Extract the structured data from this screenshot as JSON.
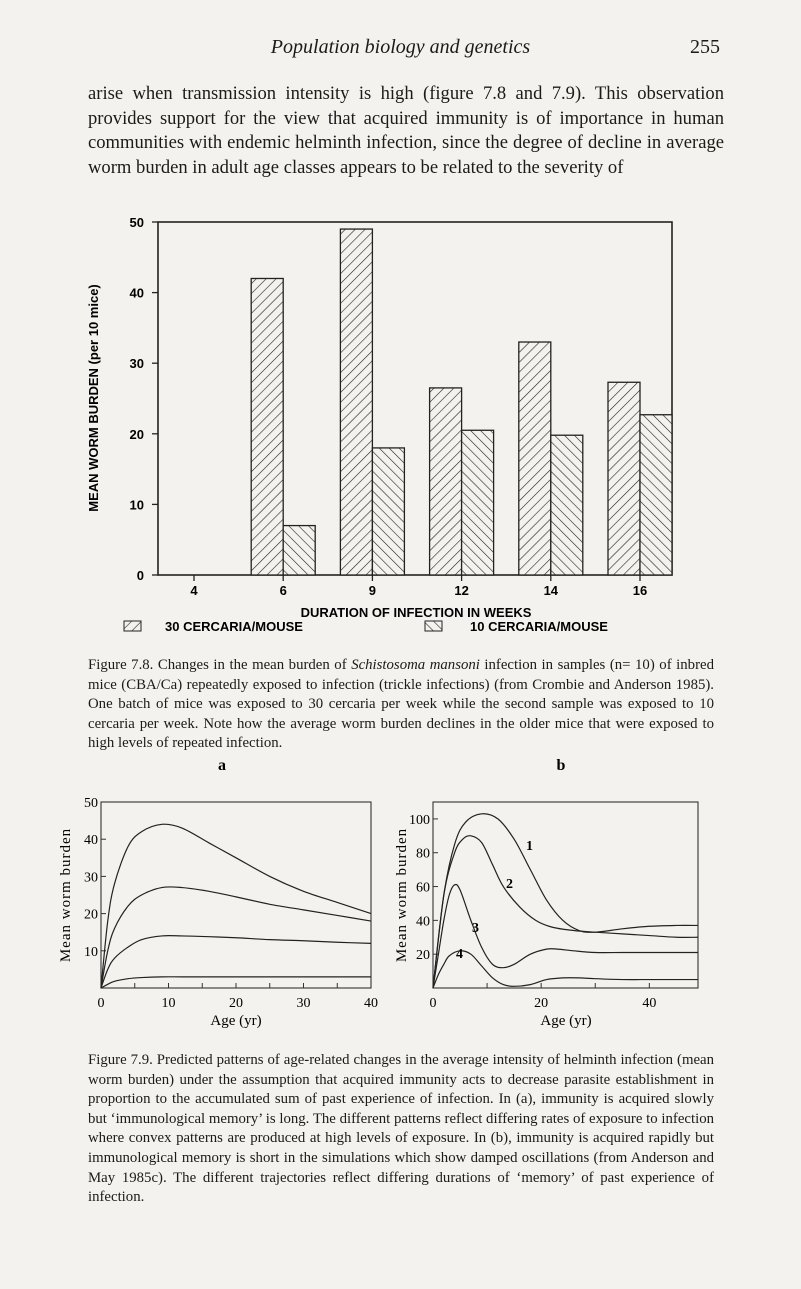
{
  "header": {
    "title": "Population biology and genetics",
    "page_number": "255"
  },
  "body_text": "arise when transmission intensity is high (figure 7.8 and 7.9). This observation provides support for the view that acquired immunity is of importance in human communities with endemic helminth infection, since the degree of decline in average worm burden in adult age classes appears to be related to the severity of",
  "figure_7_8": {
    "caption_prefix": "Figure 7.8. Changes in the mean burden of ",
    "caption_italic": "Schistosoma mansoni",
    "caption_suffix": " infection in samples (n= 10) of inbred mice (CBA/Ca) repeatedly exposed to infection (trickle infections) (from Crombie and Anderson 1985). One batch of mice was exposed to 30 cercaria per week while the second sample was exposed to 10 cercaria per week. Note how the average worm burden declines in the older mice that were exposed to high levels of repeated infection."
  },
  "figure_7_9": {
    "caption": "Figure 7.9. Predicted patterns of age-related changes in the average intensity of helminth infection (mean worm burden) under the assumption that acquired immunity acts to decrease parasite establishment in proportion to the accumulated sum of past experience of infection. In (a), immunity is acquired slowly but ‘immunological memory’ is long. The different patterns reflect differing rates of exposure to infection where convex patterns are produced at high levels of exposure. In (b), immunity is acquired rapidly but immunological memory is short in the simulations which show damped oscillations (from Anderson and May 1985c). The different trajectories reflect differing durations of ‘memory’ of past experience of infection."
  },
  "chart_data": [
    {
      "type": "bar",
      "xlabel": "DURATION OF INFECTION IN WEEKS",
      "ylabel": "MEAN WORM BURDEN (per 10 mice)",
      "categories": [
        "4",
        "6",
        "9",
        "12",
        "14",
        "16"
      ],
      "ylim": [
        0,
        50
      ],
      "yticks": [
        "0",
        "10",
        "20",
        "30",
        "40",
        "50"
      ],
      "legend_placement": "bottom",
      "series": [
        {
          "name": "30 CERCARIA/MOUSE",
          "hatch": "forward-diagonal",
          "values": [
            0,
            42,
            49,
            26.5,
            33,
            27.3
          ]
        },
        {
          "name": "10 CERCARIA/MOUSE",
          "hatch": "backward-diagonal",
          "values": [
            0,
            7,
            18,
            20.5,
            19.8,
            22.7
          ]
        }
      ]
    },
    {
      "type": "line",
      "panel_label": "a",
      "xlabel": "Age (yr)",
      "ylabel": "Mean worm burden",
      "xlim": [
        0,
        40
      ],
      "ylim": [
        0,
        50
      ],
      "xticks": [
        "0",
        "10",
        "20",
        "30",
        "40"
      ],
      "yticks": [
        "10",
        "20",
        "30",
        "40",
        "50"
      ],
      "series": [
        {
          "x": [
            0,
            1,
            2,
            4,
            6,
            9,
            12,
            16,
            20,
            25,
            30,
            35,
            40
          ],
          "y": [
            0,
            18,
            28,
            38,
            42,
            44,
            43,
            39,
            35,
            30,
            26,
            23,
            20
          ]
        },
        {
          "x": [
            0,
            1,
            2,
            4,
            6,
            9,
            12,
            16,
            20,
            25,
            30,
            35,
            40
          ],
          "y": [
            0,
            10,
            16,
            22,
            25,
            27,
            27,
            26,
            24.5,
            22.5,
            21,
            19.5,
            18
          ]
        },
        {
          "x": [
            0,
            1,
            2,
            4,
            6,
            9,
            12,
            16,
            20,
            25,
            30,
            35,
            40
          ],
          "y": [
            0,
            5,
            8,
            11,
            13,
            14,
            14,
            13.8,
            13.5,
            13,
            12.7,
            12.3,
            12
          ]
        },
        {
          "x": [
            0,
            1,
            2,
            4,
            6,
            9,
            12,
            16,
            20,
            25,
            30,
            35,
            40
          ],
          "y": [
            0,
            1,
            1.8,
            2.5,
            2.8,
            3,
            3,
            3,
            3,
            3,
            3,
            3,
            3
          ]
        }
      ]
    },
    {
      "type": "line",
      "panel_label": "b",
      "xlabel": "Age (yr)",
      "ylabel": "Mean worm burden",
      "xlim": [
        0,
        49
      ],
      "ylim": [
        0,
        110
      ],
      "xticks": [
        "0",
        "20",
        "40"
      ],
      "yticks": [
        "20",
        "40",
        "60",
        "80",
        "100"
      ],
      "series": [
        {
          "name": "1",
          "x": [
            0,
            2,
            4,
            6,
            9,
            12,
            15,
            18,
            21,
            24,
            27,
            30,
            35,
            40,
            45,
            49
          ],
          "y": [
            0,
            55,
            85,
            98,
            103,
            100,
            88,
            70,
            52,
            40,
            34,
            33,
            35,
            36.5,
            37,
            37
          ]
        },
        {
          "name": "2",
          "x": [
            0,
            2,
            4,
            5.5,
            7,
            9,
            11,
            13,
            16,
            19,
            22,
            26,
            30,
            35,
            40,
            45,
            49
          ],
          "y": [
            0,
            55,
            80,
            88,
            90,
            86,
            73,
            60,
            48,
            40,
            36,
            34,
            33,
            32,
            31,
            30,
            30
          ]
        },
        {
          "name": "3",
          "x": [
            0,
            1,
            2,
            3,
            4,
            5,
            7,
            9,
            11,
            13,
            15,
            18,
            21,
            23,
            26,
            30,
            35,
            40,
            45,
            49
          ],
          "y": [
            0,
            20,
            40,
            55,
            61,
            58,
            40,
            24,
            14,
            12,
            14,
            20,
            23,
            23,
            22,
            21,
            21,
            21,
            21,
            21
          ]
        },
        {
          "name": "4",
          "x": [
            0,
            1,
            2,
            3,
            5,
            7,
            9,
            11,
            13,
            15,
            18,
            21,
            24,
            27,
            30,
            35,
            40,
            45,
            49
          ],
          "y": [
            0,
            8,
            14,
            19,
            22,
            20,
            13,
            6,
            2,
            1,
            2,
            5,
            6,
            6,
            5.5,
            5,
            5,
            5,
            5
          ]
        }
      ]
    }
  ]
}
